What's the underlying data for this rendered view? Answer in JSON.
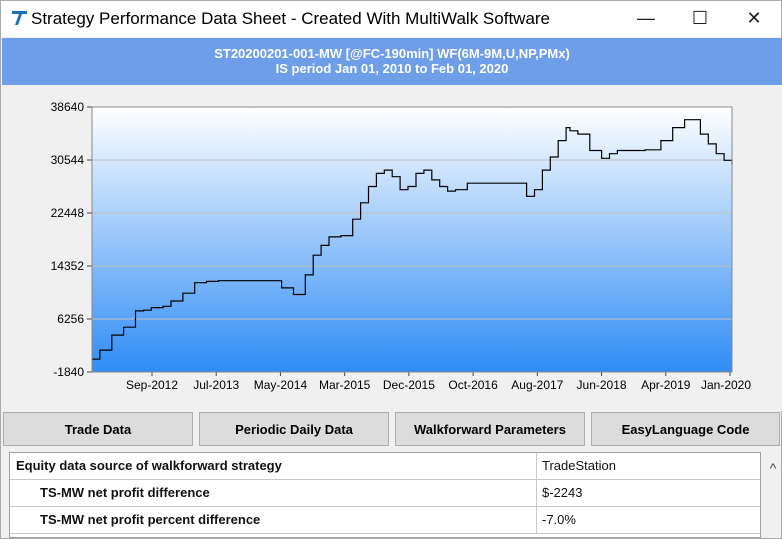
{
  "window": {
    "title": "Strategy Performance Data Sheet - Created With MultiWalk Software",
    "minimize_glyph": "—",
    "maximize_glyph": "☐",
    "close_glyph": "✕",
    "icon": "multiwalk-logo-icon"
  },
  "banner": {
    "line1": "ST20200201-001-MW [@FC-190min] WF(6M-9M,U,NP,PMx)",
    "line2": "IS period Jan 01, 2010 to Feb 01, 2020"
  },
  "chart_data": {
    "type": "line",
    "title": "",
    "xlabel": "",
    "ylabel": "",
    "ylim": [
      -1840,
      38640
    ],
    "y_ticks": [
      "38640",
      "30544",
      "22448",
      "14352",
      "6256",
      "-1840"
    ],
    "x_ticks": [
      "Sep-2012",
      "Jul-2013",
      "May-2014",
      "Mar-2015",
      "Dec-2015",
      "Oct-2016",
      "Aug-2017",
      "Jun-2018",
      "Apr-2019",
      "Jan-2020"
    ],
    "grid": true,
    "colors": {
      "line": "#000000",
      "fill_top": "#ffffff",
      "fill_bottom": "#2f8cf5",
      "grid": "#c0c0c0"
    },
    "series": [
      {
        "x": [
          2012.0,
          2012.1,
          2012.25,
          2012.4,
          2012.55,
          2012.65,
          2012.75,
          2012.9,
          2013.0,
          2013.15,
          2013.3,
          2013.45,
          2013.6,
          2013.8,
          2014.0,
          2014.2,
          2014.4,
          2014.55,
          2014.7,
          2014.8,
          2014.9,
          2015.0,
          2015.15,
          2015.3,
          2015.4,
          2015.5,
          2015.6,
          2015.7,
          2015.8,
          2015.9,
          2016.0,
          2016.1,
          2016.2,
          2016.3,
          2016.4,
          2016.5,
          2016.6,
          2016.75,
          2016.9,
          2017.1,
          2017.3,
          2017.5,
          2017.6,
          2017.7,
          2017.8,
          2017.9,
          2018.0,
          2018.05,
          2018.15,
          2018.3,
          2018.45,
          2018.55,
          2018.65,
          2018.8,
          2019.0,
          2019.2,
          2019.35,
          2019.5,
          2019.7,
          2019.8,
          2019.9,
          2020.0,
          2020.1
        ],
        "y": [
          120,
          1500,
          3800,
          5000,
          7500,
          7600,
          8000,
          8200,
          9000,
          10200,
          11800,
          12000,
          12100,
          12100,
          12100,
          12100,
          11000,
          10000,
          13000,
          16000,
          17500,
          18800,
          19000,
          21500,
          24000,
          26500,
          28500,
          29000,
          28000,
          26000,
          26500,
          28500,
          29000,
          27500,
          26500,
          25800,
          26000,
          27000,
          27000,
          27000,
          27000,
          25000,
          26000,
          29000,
          31000,
          33500,
          35500,
          35000,
          34500,
          32000,
          30800,
          31500,
          32000,
          32000,
          32100,
          33500,
          35500,
          36700,
          34500,
          33000,
          31500,
          30500,
          29800
        ]
      }
    ]
  },
  "buttons": {
    "trade_data": "Trade Data",
    "periodic_daily_data": "Periodic Daily Data",
    "walkforward_parameters": "Walkforward Parameters",
    "easylanguage_code": "EasyLanguage Code"
  },
  "grid": {
    "rows": [
      {
        "label": "Equity data source of walkforward strategy",
        "value": "TradeStation"
      },
      {
        "label": "TS-MW net profit difference",
        "value": "$-2243"
      },
      {
        "label": "TS-MW net profit percent difference",
        "value": "-7.0%"
      }
    ],
    "scroll_glyph": "^"
  }
}
